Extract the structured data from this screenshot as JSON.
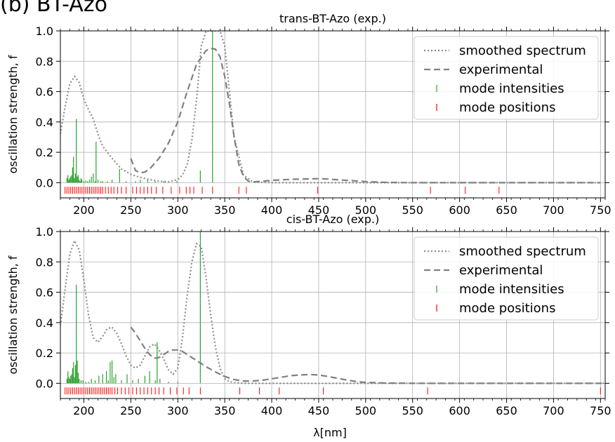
{
  "figure_title": "(b) BT-Azo",
  "chart_data": [
    {
      "type": "line",
      "title": "trans-BT-Azo (exp.)",
      "xlabel": "λ[nm]",
      "ylabel": "oscillation strength, f",
      "xlim": [
        175,
        755
      ],
      "ylim": [
        -0.1,
        1.0
      ],
      "xticks": [
        200,
        250,
        300,
        350,
        400,
        450,
        500,
        550,
        600,
        650,
        700,
        750
      ],
      "yticks": [
        0.0,
        0.2,
        0.4,
        0.6,
        0.8,
        1.0
      ],
      "grid": true,
      "legend_position": "top-right",
      "legend": [
        "smoothed spectrum",
        "experimental",
        "mode intensities",
        "mode positions"
      ],
      "series": [
        {
          "name": "smoothed spectrum",
          "style": "dotted",
          "color": "#8c8c8c",
          "x": [
            175,
            180,
            185,
            190,
            195,
            200,
            205,
            210,
            215,
            220,
            230,
            240,
            250,
            260,
            270,
            280,
            290,
            300,
            305,
            310,
            315,
            320,
            325,
            330,
            335,
            340,
            345,
            350,
            355,
            360,
            370,
            380,
            400,
            450,
            500,
            550,
            600,
            650,
            700,
            745
          ],
          "y": [
            0.32,
            0.5,
            0.65,
            0.7,
            0.66,
            0.55,
            0.48,
            0.42,
            0.32,
            0.24,
            0.16,
            0.09,
            0.055,
            0.035,
            0.02,
            0.01,
            0.005,
            0.02,
            0.05,
            0.12,
            0.28,
            0.55,
            0.9,
            1.0,
            1.0,
            1.0,
            1.0,
            0.9,
            0.6,
            0.3,
            0.05,
            0.005,
            0.0,
            0.0,
            0.0,
            0.0,
            0.0,
            0.0,
            0.0,
            0.0
          ]
        },
        {
          "name": "experimental",
          "style": "dashed",
          "color": "#808080",
          "x": [
            250,
            255,
            260,
            265,
            270,
            280,
            290,
            300,
            310,
            320,
            330,
            335,
            340,
            345,
            350,
            355,
            360,
            365,
            370,
            375,
            380,
            390,
            400,
            420,
            440,
            450,
            460,
            480,
            500,
            520,
            550,
            600,
            650,
            700,
            750
          ],
          "y": [
            0.16,
            0.08,
            0.065,
            0.07,
            0.09,
            0.16,
            0.26,
            0.4,
            0.6,
            0.78,
            0.87,
            0.885,
            0.88,
            0.83,
            0.7,
            0.52,
            0.3,
            0.12,
            0.04,
            0.01,
            0.005,
            0.01,
            0.015,
            0.022,
            0.025,
            0.026,
            0.024,
            0.015,
            0.007,
            0.002,
            0.0,
            0.0,
            0.0,
            0.0,
            0.0
          ]
        },
        {
          "name": "mode intensities",
          "style": "stem",
          "color": "#2ca02c",
          "x": [
            182,
            183,
            184,
            185,
            186,
            187,
            188,
            189,
            190,
            191,
            192,
            193,
            194,
            195,
            196,
            197,
            198,
            200,
            202,
            204,
            206,
            208,
            210,
            212,
            213,
            215,
            218,
            220,
            225,
            230,
            238,
            245,
            255,
            260,
            268,
            276,
            285,
            299,
            324,
            337
          ],
          "y": [
            0.03,
            0.05,
            0.02,
            0.03,
            0.04,
            0.05,
            0.1,
            0.17,
            0.03,
            0.06,
            0.42,
            0.04,
            0.05,
            0.02,
            0.01,
            0.03,
            0.02,
            0.01,
            0.015,
            0.01,
            0.02,
            0.04,
            0.06,
            0.01,
            0.27,
            0.02,
            0.01,
            0.01,
            0.01,
            0.02,
            0.09,
            0.01,
            0.01,
            0.02,
            0.02,
            0.01,
            0.01,
            0.01,
            0.08,
            1.0
          ]
        },
        {
          "name": "mode positions",
          "style": "tick",
          "color": "#ff0000",
          "x": [
            180,
            182,
            184,
            186,
            188,
            190,
            192,
            194,
            196,
            198,
            200,
            202,
            204,
            206,
            208,
            210,
            212,
            214,
            216,
            218,
            220,
            223,
            226,
            229,
            232,
            236,
            240,
            245,
            252,
            256,
            260,
            264,
            268,
            272,
            277,
            284,
            293,
            302,
            309,
            313,
            317,
            326,
            337,
            365,
            373,
            449,
            569,
            606,
            642
          ]
        }
      ]
    },
    {
      "type": "line",
      "title": "cis-BT-Azo (exp.)",
      "xlabel": "λ[nm]",
      "ylabel": "oscillation strength, f",
      "xlim": [
        175,
        755
      ],
      "ylim": [
        -0.1,
        1.0
      ],
      "xticks": [
        200,
        250,
        300,
        350,
        400,
        450,
        500,
        550,
        600,
        650,
        700,
        750
      ],
      "yticks": [
        0.0,
        0.2,
        0.4,
        0.6,
        0.8,
        1.0
      ],
      "grid": true,
      "legend_position": "top-right",
      "legend": [
        "smoothed spectrum",
        "experimental",
        "mode intensities",
        "mode positions"
      ],
      "series": [
        {
          "name": "smoothed spectrum",
          "style": "dotted",
          "color": "#8c8c8c",
          "x": [
            175,
            180,
            185,
            190,
            195,
            200,
            205,
            210,
            215,
            220,
            225,
            230,
            235,
            240,
            245,
            250,
            255,
            260,
            265,
            270,
            275,
            280,
            285,
            290,
            295,
            300,
            305,
            310,
            315,
            320,
            325,
            330,
            335,
            340,
            345,
            350,
            355,
            360,
            370,
            400,
            500,
            600,
            700,
            755
          ],
          "y": [
            0.38,
            0.62,
            0.85,
            0.94,
            0.88,
            0.68,
            0.45,
            0.3,
            0.27,
            0.31,
            0.36,
            0.37,
            0.33,
            0.26,
            0.18,
            0.12,
            0.1,
            0.12,
            0.18,
            0.24,
            0.26,
            0.22,
            0.16,
            0.09,
            0.06,
            0.1,
            0.3,
            0.58,
            0.8,
            0.92,
            0.9,
            0.7,
            0.45,
            0.24,
            0.1,
            0.03,
            0.01,
            0.005,
            0.0,
            0.0,
            0.0,
            0.0,
            0.0,
            0.0
          ]
        },
        {
          "name": "experimental",
          "style": "dashed",
          "color": "#808080",
          "x": [
            250,
            255,
            260,
            265,
            270,
            275,
            280,
            285,
            290,
            295,
            300,
            305,
            310,
            320,
            330,
            340,
            350,
            360,
            370,
            380,
            390,
            400,
            410,
            420,
            430,
            440,
            450,
            460,
            470,
            480,
            490,
            500,
            520,
            550,
            600,
            650,
            700,
            755
          ],
          "y": [
            0.37,
            0.33,
            0.28,
            0.23,
            0.19,
            0.165,
            0.17,
            0.19,
            0.21,
            0.22,
            0.22,
            0.21,
            0.19,
            0.15,
            0.11,
            0.075,
            0.045,
            0.025,
            0.015,
            0.015,
            0.02,
            0.03,
            0.04,
            0.05,
            0.055,
            0.058,
            0.055,
            0.045,
            0.033,
            0.022,
            0.012,
            0.006,
            0.002,
            0.0,
            0.0,
            0.0,
            0.0,
            0.0
          ]
        },
        {
          "name": "mode intensities",
          "style": "stem",
          "color": "#2ca02c",
          "x": [
            182,
            183,
            184,
            185,
            186,
            187,
            188,
            189,
            190,
            191,
            192,
            193,
            194,
            195,
            197,
            199,
            202,
            205,
            208,
            212,
            216,
            220,
            224,
            226,
            228,
            230,
            232,
            234,
            240,
            246,
            252,
            258,
            265,
            270,
            276,
            278,
            281,
            290,
            300,
            324
          ],
          "y": [
            0.03,
            0.08,
            0.04,
            0.03,
            0.05,
            0.06,
            0.1,
            0.14,
            0.04,
            0.12,
            0.65,
            0.15,
            0.07,
            0.03,
            0.02,
            0.02,
            0.01,
            0.01,
            0.03,
            0.02,
            0.05,
            0.06,
            0.08,
            0.02,
            0.14,
            0.15,
            0.04,
            0.06,
            0.02,
            0.06,
            0.02,
            0.03,
            0.05,
            0.08,
            0.02,
            0.27,
            0.03,
            0.01,
            0.01,
            1.0
          ]
        },
        {
          "name": "mode positions",
          "style": "tick",
          "color": "#ff0000",
          "x": [
            180,
            182,
            184,
            186,
            188,
            190,
            192,
            194,
            196,
            198,
            200,
            202,
            204,
            206,
            208,
            210,
            212,
            214,
            216,
            218,
            220,
            222,
            224,
            226,
            228,
            230,
            233,
            236,
            240,
            244,
            248,
            252,
            256,
            260,
            264,
            268,
            272,
            276,
            280,
            285,
            292,
            299,
            306,
            312,
            324,
            366,
            387,
            408,
            455,
            566,
            750
          ]
        }
      ]
    }
  ]
}
